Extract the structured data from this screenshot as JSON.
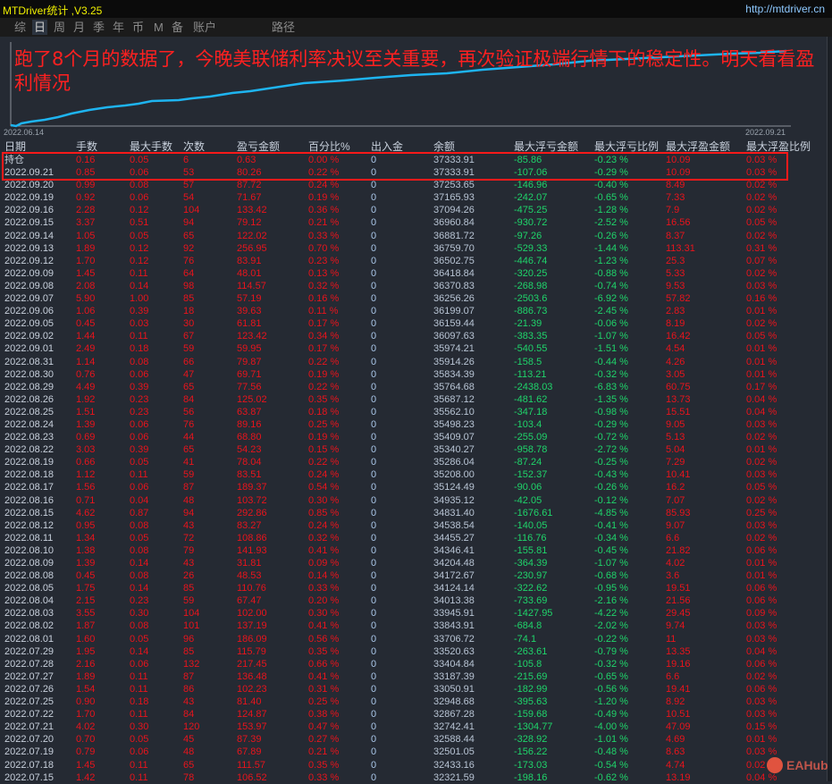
{
  "app": {
    "title": "MTDriver统计 ,V3.25",
    "link": "http://mtdriver.cn"
  },
  "tabs": [
    {
      "label": "综"
    },
    {
      "label": "日",
      "active": true
    },
    {
      "label": "周"
    },
    {
      "label": "月"
    },
    {
      "label": "季"
    },
    {
      "label": "年"
    },
    {
      "label": "币"
    },
    {
      "label": "M"
    },
    {
      "label": "备"
    },
    {
      "label": "账户"
    },
    {
      "label": "路径"
    }
  ],
  "chart": {
    "start_date": "2022.06.14",
    "end_date": "2022.09.21",
    "line_color": "#1eb4f0",
    "overlay_text": "跑了8个月的数据了，今晚美联储利率决议至关重要，再次验证极端行情下的稳定性。明天看看盈利情况"
  },
  "table": {
    "headers": [
      "日期",
      "手数",
      "最大手数",
      "次数",
      "盈亏金额",
      "百分比%",
      "出入金",
      "余额",
      "最大浮亏金额",
      "最大浮亏比例",
      "最大浮盈金额",
      "最大浮盈比例"
    ],
    "rows": [
      [
        "持仓",
        "0.16",
        "0.05",
        "6",
        "0.63",
        "0.00 %",
        "0",
        "37333.91",
        "-85.86",
        "-0.23 %",
        "10.09",
        "0.03 %"
      ],
      [
        "2022.09.21",
        "0.85",
        "0.06",
        "53",
        "80.26",
        "0.22 %",
        "0",
        "37333.91",
        "-107.06",
        "-0.29 %",
        "10.09",
        "0.03 %"
      ],
      [
        "2022.09.20",
        "0.99",
        "0.08",
        "57",
        "87.72",
        "0.24 %",
        "0",
        "37253.65",
        "-146.96",
        "-0.40 %",
        "8.49",
        "0.02 %"
      ],
      [
        "2022.09.19",
        "0.92",
        "0.06",
        "54",
        "71.67",
        "0.19 %",
        "0",
        "37165.93",
        "-242.07",
        "-0.65 %",
        "7.33",
        "0.02 %"
      ],
      [
        "2022.09.16",
        "2.28",
        "0.12",
        "104",
        "133.42",
        "0.36 %",
        "0",
        "37094.26",
        "-475.25",
        "-1.28 %",
        "7.9",
        "0.02 %"
      ],
      [
        "2022.09.15",
        "3.37",
        "0.51",
        "94",
        "79.12",
        "0.21 %",
        "0",
        "36960.84",
        "-930.72",
        "-2.52 %",
        "16.56",
        "0.05 %"
      ],
      [
        "2022.09.14",
        "1.05",
        "0.05",
        "65",
        "122.02",
        "0.33 %",
        "0",
        "36881.72",
        "-97.26",
        "-0.26 %",
        "8.37",
        "0.02 %"
      ],
      [
        "2022.09.13",
        "1.89",
        "0.12",
        "92",
        "256.95",
        "0.70 %",
        "0",
        "36759.70",
        "-529.33",
        "-1.44 %",
        "113.31",
        "0.31 %"
      ],
      [
        "2022.09.12",
        "1.70",
        "0.12",
        "76",
        "83.91",
        "0.23 %",
        "0",
        "36502.75",
        "-446.74",
        "-1.23 %",
        "25.3",
        "0.07 %"
      ],
      [
        "2022.09.09",
        "1.45",
        "0.11",
        "64",
        "48.01",
        "0.13 %",
        "0",
        "36418.84",
        "-320.25",
        "-0.88 %",
        "5.33",
        "0.02 %"
      ],
      [
        "2022.09.08",
        "2.08",
        "0.14",
        "98",
        "114.57",
        "0.32 %",
        "0",
        "36370.83",
        "-268.98",
        "-0.74 %",
        "9.53",
        "0.03 %"
      ],
      [
        "2022.09.07",
        "5.90",
        "1.00",
        "85",
        "57.19",
        "0.16 %",
        "0",
        "36256.26",
        "-2503.6",
        "-6.92 %",
        "57.82",
        "0.16 %"
      ],
      [
        "2022.09.06",
        "1.06",
        "0.39",
        "18",
        "39.63",
        "0.11 %",
        "0",
        "36199.07",
        "-886.73",
        "-2.45 %",
        "2.83",
        "0.01 %"
      ],
      [
        "2022.09.05",
        "0.45",
        "0.03",
        "30",
        "61.81",
        "0.17 %",
        "0",
        "36159.44",
        "-21.39",
        "-0.06 %",
        "8.19",
        "0.02 %"
      ],
      [
        "2022.09.02",
        "1.44",
        "0.11",
        "67",
        "123.42",
        "0.34 %",
        "0",
        "36097.63",
        "-383.35",
        "-1.07 %",
        "16.42",
        "0.05 %"
      ],
      [
        "2022.09.01",
        "2.49",
        "0.18",
        "59",
        "59.95",
        "0.17 %",
        "0",
        "35974.21",
        "-540.55",
        "-1.51 %",
        "4.54",
        "0.01 %"
      ],
      [
        "2022.08.31",
        "1.14",
        "0.08",
        "66",
        "79.87",
        "0.22 %",
        "0",
        "35914.26",
        "-158.5",
        "-0.44 %",
        "4.26",
        "0.01 %"
      ],
      [
        "2022.08.30",
        "0.76",
        "0.06",
        "47",
        "69.71",
        "0.19 %",
        "0",
        "35834.39",
        "-113.21",
        "-0.32 %",
        "3.05",
        "0.01 %"
      ],
      [
        "2022.08.29",
        "4.49",
        "0.39",
        "65",
        "77.56",
        "0.22 %",
        "0",
        "35764.68",
        "-2438.03",
        "-6.83 %",
        "60.75",
        "0.17 %"
      ],
      [
        "2022.08.26",
        "1.92",
        "0.23",
        "84",
        "125.02",
        "0.35 %",
        "0",
        "35687.12",
        "-481.62",
        "-1.35 %",
        "13.73",
        "0.04 %"
      ],
      [
        "2022.08.25",
        "1.51",
        "0.23",
        "56",
        "63.87",
        "0.18 %",
        "0",
        "35562.10",
        "-347.18",
        "-0.98 %",
        "15.51",
        "0.04 %"
      ],
      [
        "2022.08.24",
        "1.39",
        "0.06",
        "76",
        "89.16",
        "0.25 %",
        "0",
        "35498.23",
        "-103.4",
        "-0.29 %",
        "9.05",
        "0.03 %"
      ],
      [
        "2022.08.23",
        "0.69",
        "0.06",
        "44",
        "68.80",
        "0.19 %",
        "0",
        "35409.07",
        "-255.09",
        "-0.72 %",
        "5.13",
        "0.02 %"
      ],
      [
        "2022.08.22",
        "3.03",
        "0.39",
        "65",
        "54.23",
        "0.15 %",
        "0",
        "35340.27",
        "-958.78",
        "-2.72 %",
        "5.04",
        "0.01 %"
      ],
      [
        "2022.08.19",
        "0.66",
        "0.05",
        "41",
        "78.04",
        "0.22 %",
        "0",
        "35286.04",
        "-87.24",
        "-0.25 %",
        "7.29",
        "0.02 %"
      ],
      [
        "2022.08.18",
        "1.12",
        "0.11",
        "59",
        "83.51",
        "0.24 %",
        "0",
        "35208.00",
        "-152.37",
        "-0.43 %",
        "10.41",
        "0.03 %"
      ],
      [
        "2022.08.17",
        "1.56",
        "0.06",
        "87",
        "189.37",
        "0.54 %",
        "0",
        "35124.49",
        "-90.06",
        "-0.26 %",
        "16.2",
        "0.05 %"
      ],
      [
        "2022.08.16",
        "0.71",
        "0.04",
        "48",
        "103.72",
        "0.30 %",
        "0",
        "34935.12",
        "-42.05",
        "-0.12 %",
        "7.07",
        "0.02 %"
      ],
      [
        "2022.08.15",
        "4.62",
        "0.87",
        "94",
        "292.86",
        "0.85 %",
        "0",
        "34831.40",
        "-1676.61",
        "-4.85 %",
        "85.93",
        "0.25 %"
      ],
      [
        "2022.08.12",
        "0.95",
        "0.08",
        "43",
        "83.27",
        "0.24 %",
        "0",
        "34538.54",
        "-140.05",
        "-0.41 %",
        "9.07",
        "0.03 %"
      ],
      [
        "2022.08.11",
        "1.34",
        "0.05",
        "72",
        "108.86",
        "0.32 %",
        "0",
        "34455.27",
        "-116.76",
        "-0.34 %",
        "6.6",
        "0.02 %"
      ],
      [
        "2022.08.10",
        "1.38",
        "0.08",
        "79",
        "141.93",
        "0.41 %",
        "0",
        "34346.41",
        "-155.81",
        "-0.45 %",
        "21.82",
        "0.06 %"
      ],
      [
        "2022.08.09",
        "1.39",
        "0.14",
        "43",
        "31.81",
        "0.09 %",
        "0",
        "34204.48",
        "-364.39",
        "-1.07 %",
        "4.02",
        "0.01 %"
      ],
      [
        "2022.08.08",
        "0.45",
        "0.08",
        "26",
        "48.53",
        "0.14 %",
        "0",
        "34172.67",
        "-230.97",
        "-0.68 %",
        "3.6",
        "0.01 %"
      ],
      [
        "2022.08.05",
        "1.75",
        "0.14",
        "85",
        "110.76",
        "0.33 %",
        "0",
        "34124.14",
        "-322.62",
        "-0.95 %",
        "19.51",
        "0.06 %"
      ],
      [
        "2022.08.04",
        "2.15",
        "0.23",
        "59",
        "67.47",
        "0.20 %",
        "0",
        "34013.38",
        "-733.69",
        "-2.16 %",
        "21.56",
        "0.06 %"
      ],
      [
        "2022.08.03",
        "3.55",
        "0.30",
        "104",
        "102.00",
        "0.30 %",
        "0",
        "33945.91",
        "-1427.95",
        "-4.22 %",
        "29.45",
        "0.09 %"
      ],
      [
        "2022.08.02",
        "1.87",
        "0.08",
        "101",
        "137.19",
        "0.41 %",
        "0",
        "33843.91",
        "-684.8",
        "-2.02 %",
        "9.74",
        "0.03 %"
      ],
      [
        "2022.08.01",
        "1.60",
        "0.05",
        "96",
        "186.09",
        "0.56 %",
        "0",
        "33706.72",
        "-74.1",
        "-0.22 %",
        "11",
        "0.03 %"
      ],
      [
        "2022.07.29",
        "1.95",
        "0.14",
        "85",
        "115.79",
        "0.35 %",
        "0",
        "33520.63",
        "-263.61",
        "-0.79 %",
        "13.35",
        "0.04 %"
      ],
      [
        "2022.07.28",
        "2.16",
        "0.06",
        "132",
        "217.45",
        "0.66 %",
        "0",
        "33404.84",
        "-105.8",
        "-0.32 %",
        "19.16",
        "0.06 %"
      ],
      [
        "2022.07.27",
        "1.89",
        "0.11",
        "87",
        "136.48",
        "0.41 %",
        "0",
        "33187.39",
        "-215.69",
        "-0.65 %",
        "6.6",
        "0.02 %"
      ],
      [
        "2022.07.26",
        "1.54",
        "0.11",
        "86",
        "102.23",
        "0.31 %",
        "0",
        "33050.91",
        "-182.99",
        "-0.56 %",
        "19.41",
        "0.06 %"
      ],
      [
        "2022.07.25",
        "0.90",
        "0.18",
        "43",
        "81.40",
        "0.25 %",
        "0",
        "32948.68",
        "-395.63",
        "-1.20 %",
        "8.92",
        "0.03 %"
      ],
      [
        "2022.07.22",
        "1.70",
        "0.11",
        "84",
        "124.87",
        "0.38 %",
        "0",
        "32867.28",
        "-159.68",
        "-0.49 %",
        "10.51",
        "0.03 %"
      ],
      [
        "2022.07.21",
        "4.02",
        "0.30",
        "120",
        "153.97",
        "0.47 %",
        "0",
        "32742.41",
        "-1304.77",
        "-4.00 %",
        "47.09",
        "0.15 %"
      ],
      [
        "2022.07.20",
        "0.70",
        "0.05",
        "45",
        "87.39",
        "0.27 %",
        "0",
        "32588.44",
        "-328.92",
        "-1.01 %",
        "4.69",
        "0.01 %"
      ],
      [
        "2022.07.19",
        "0.79",
        "0.06",
        "48",
        "67.89",
        "0.21 %",
        "0",
        "32501.05",
        "-156.22",
        "-0.48 %",
        "8.63",
        "0.03 %"
      ],
      [
        "2022.07.18",
        "1.45",
        "0.11",
        "65",
        "111.57",
        "0.35 %",
        "0",
        "32433.16",
        "-173.03",
        "-0.54 %",
        "4.74",
        "0.02 %"
      ],
      [
        "2022.07.15",
        "1.42",
        "0.11",
        "78",
        "106.52",
        "0.33 %",
        "0",
        "32321.59",
        "-198.16",
        "-0.62 %",
        "13.19",
        "0.04 %"
      ]
    ]
  },
  "watermark": {
    "text": "EAHub"
  }
}
